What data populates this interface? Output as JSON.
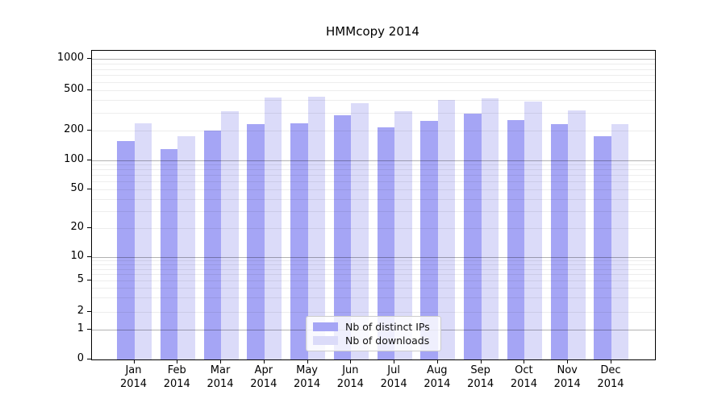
{
  "chart_data": {
    "type": "bar",
    "title": "HMMcopy 2014",
    "year": "2014",
    "categories": [
      "Jan",
      "Feb",
      "Mar",
      "Apr",
      "May",
      "Jun",
      "Jul",
      "Aug",
      "Sep",
      "Oct",
      "Nov",
      "Dec"
    ],
    "series": [
      {
        "name": "Nb of distinct IPs",
        "color": "#a5a5f5",
        "values": [
          155,
          130,
          200,
          233,
          235,
          282,
          215,
          250,
          292,
          255,
          230,
          176
        ]
      },
      {
        "name": "Nb of downloads",
        "color": "#dbdbf9",
        "values": [
          235,
          175,
          308,
          425,
          430,
          372,
          310,
          400,
          420,
          388,
          318,
          230
        ]
      }
    ],
    "y_ticks": [
      0,
      1,
      2,
      5,
      10,
      20,
      50,
      100,
      200,
      500,
      1000
    ],
    "y_scale": "symlog",
    "ylim": [
      0,
      1000
    ],
    "xlabel": "",
    "ylabel": "",
    "grid": true,
    "legend_position": "lower center",
    "colors": {
      "major_grid": "#b3b3b3",
      "minor_grid": "#ededed",
      "frame": "#000000"
    }
  }
}
